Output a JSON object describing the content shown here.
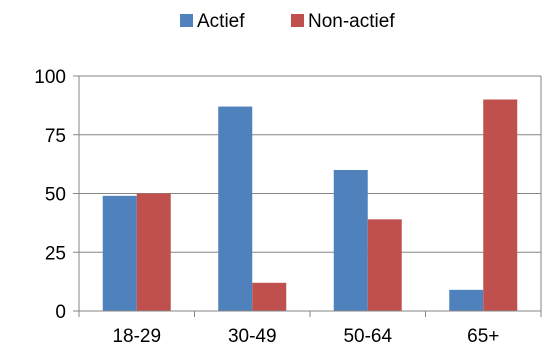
{
  "chart_data": {
    "type": "bar",
    "categories": [
      "18-29",
      "30-49",
      "50-64",
      "65+"
    ],
    "series": [
      {
        "name": "Actief",
        "color": "#4F81BD",
        "values": [
          49,
          87,
          60,
          9
        ]
      },
      {
        "name": "Non-actief",
        "color": "#C0504D",
        "values": [
          50,
          12,
          39,
          90
        ]
      }
    ],
    "y_ticks": [
      "0",
      "25",
      "50",
      "75",
      "100"
    ],
    "ylim": [
      0,
      100
    ],
    "grid": true,
    "legend_position": "top-center"
  }
}
